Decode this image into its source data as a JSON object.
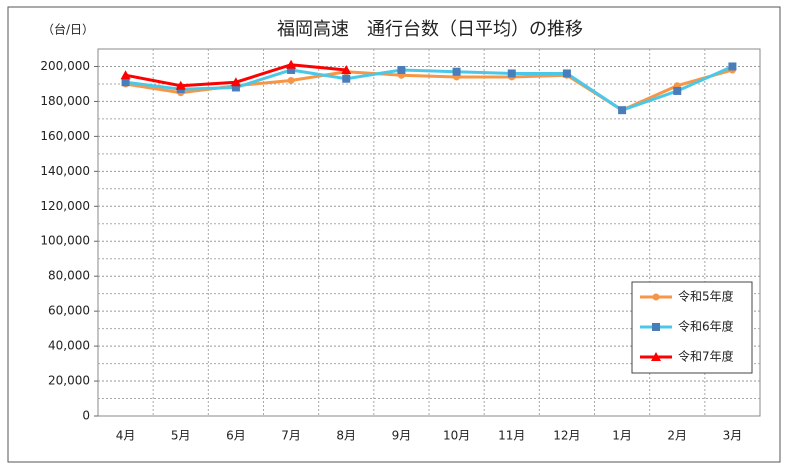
{
  "chart_data": {
    "type": "line",
    "title": "福岡高速　通行台数（日平均）の推移",
    "y_label": "（台/日）",
    "categories": [
      "4月",
      "5月",
      "6月",
      "7月",
      "8月",
      "9月",
      "10月",
      "11月",
      "12月",
      "1月",
      "2月",
      "3月"
    ],
    "series": [
      {
        "name": "令和5年度",
        "color": "#f79646",
        "marker": "circle",
        "values": [
          190000,
          185000,
          189000,
          192000,
          197000,
          195000,
          194000,
          194000,
          195000,
          175000,
          189000,
          198000
        ]
      },
      {
        "name": "令和6年度",
        "color": "#4bc8e8",
        "marker": "square",
        "values": [
          191000,
          187000,
          188000,
          198000,
          193000,
          198000,
          197000,
          196000,
          196000,
          175000,
          186000,
          200000
        ]
      },
      {
        "name": "令和7年度",
        "color": "#ff0000",
        "marker": "triangle",
        "values": [
          195000,
          189000,
          191000,
          201000,
          198000,
          null,
          null,
          null,
          null,
          null,
          null,
          null
        ]
      }
    ],
    "ylim": [
      0,
      210000
    ],
    "yticks": [
      0,
      {
        "value": 20000,
        "label": "20,000"
      },
      {
        "value": 40000,
        "label": "40,000"
      },
      {
        "value": 60000,
        "label": "60,000"
      },
      {
        "value": 80000,
        "label": "80,000"
      },
      {
        "value": 100000,
        "label": "100,000"
      },
      {
        "value": 120000,
        "label": "120,000"
      },
      {
        "value": 140000,
        "label": "140,000"
      },
      {
        "value": 160000,
        "label": "160,000"
      },
      {
        "value": 180000,
        "label": "180,000"
      },
      {
        "value": 200000,
        "label": "200,000"
      }
    ],
    "grid": true,
    "legend": "lower right"
  }
}
